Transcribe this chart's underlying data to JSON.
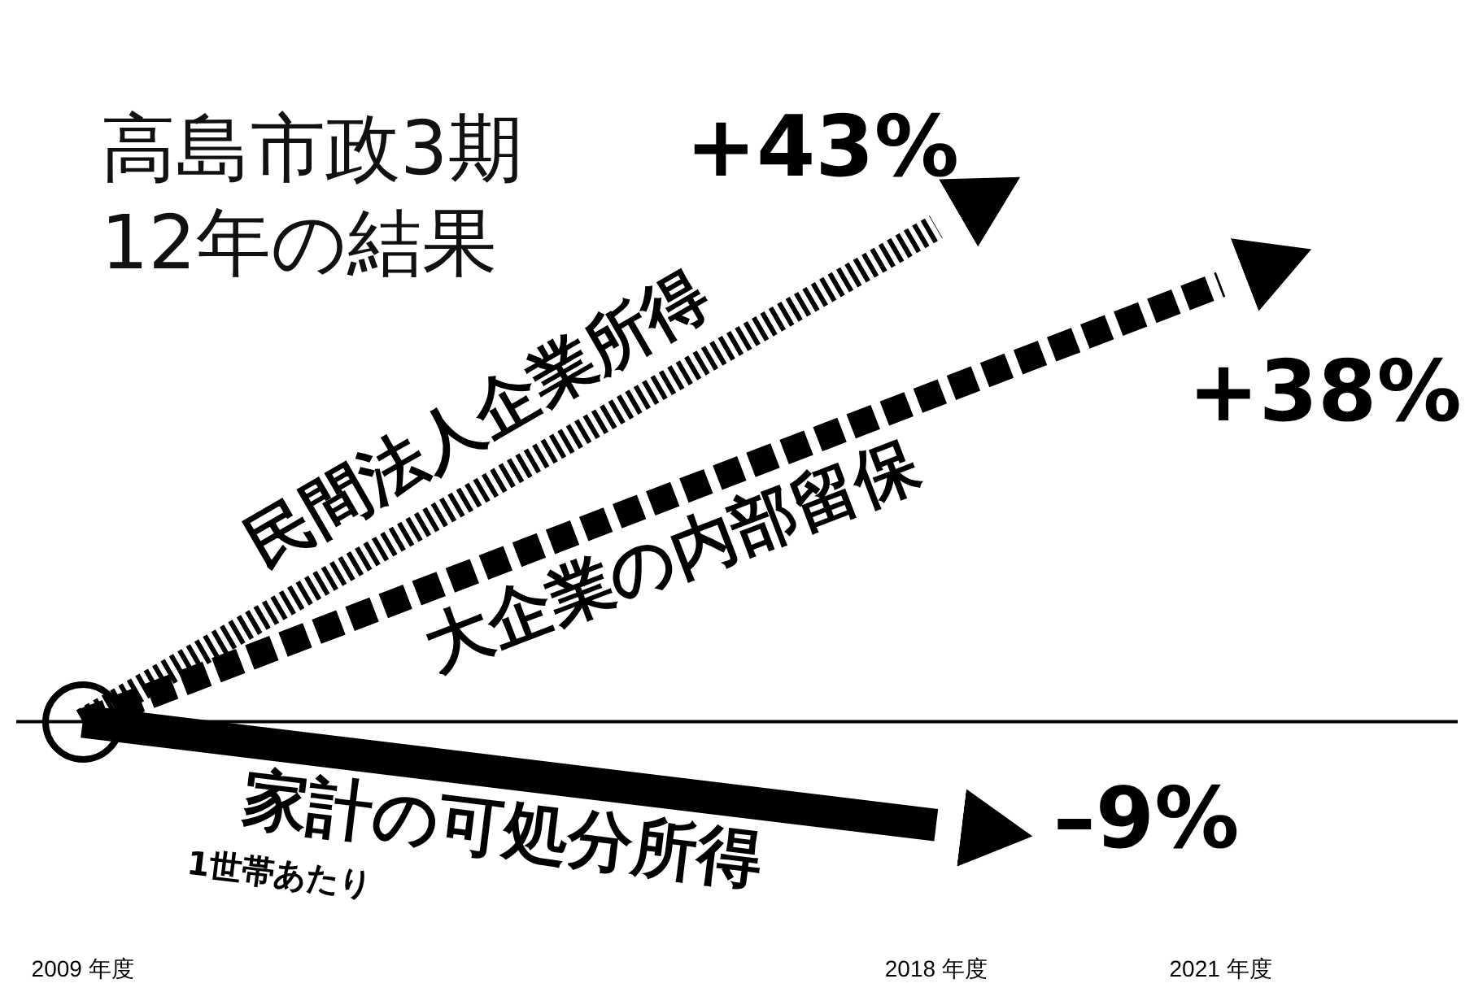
{
  "chart_data": {
    "type": "line",
    "title": "高島市政3期\n12年の結果",
    "annotations": [
      "1世帯あたり"
    ],
    "xticks": [
      {
        "value": 2009,
        "label": "2009 年度"
      },
      {
        "value": 2018,
        "label": "2018 年度"
      },
      {
        "value": 2021,
        "label": "2021 年度"
      }
    ],
    "xlim": [
      2008.3,
      2023.5
    ],
    "series": [
      {
        "name": "民間法人企業所得",
        "color": "#000000",
        "line_style": "dotted",
        "x": [
          2009,
          2018
        ],
        "values": [
          0,
          43
        ],
        "value_labels": [
          null,
          "+43%"
        ]
      },
      {
        "name": "大企業の内部留保",
        "color": "#000000",
        "line_style": "dashed",
        "x": [
          2009,
          2021
        ],
        "values": [
          0,
          38
        ],
        "value_labels": [
          null,
          "+38%"
        ]
      },
      {
        "name": "家計の可処分所得",
        "color": "#000000",
        "line_style": "solid",
        "x": [
          2009,
          2018
        ],
        "values": [
          0,
          -9
        ],
        "value_labels": [
          null,
          "–9%"
        ]
      }
    ],
    "ref_lines": [
      {
        "axis": "y",
        "value": 0
      }
    ],
    "tick_labels": "x",
    "grid": false,
    "legend": false,
    "marker": "none"
  }
}
